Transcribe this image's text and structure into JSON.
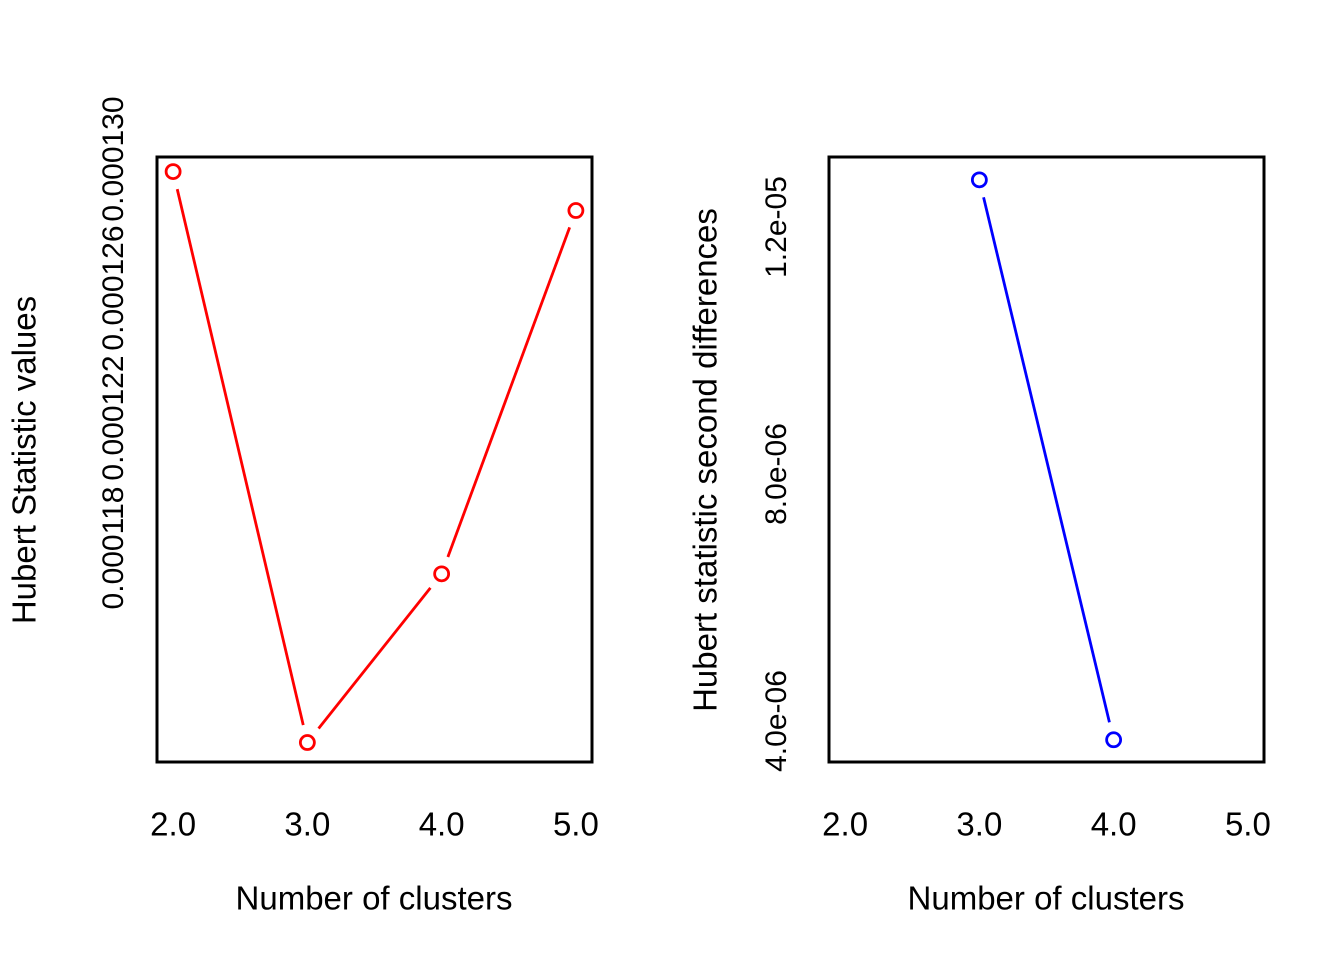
{
  "figure": {
    "background": "#FFFFFF",
    "text_color": "#000000",
    "frame_color": "#000000"
  },
  "chart_data": [
    {
      "type": "line",
      "xlabel": "Number of clusters",
      "ylabel": "Hubert Statistic values",
      "series": [
        {
          "color": "#FF0000",
          "marker": "open-circle",
          "x": [
            2,
            3,
            4,
            5
          ],
          "y": [
            0.0001296,
            0.000112,
            0.0001172,
            0.0001284
          ]
        }
      ],
      "xlim": [
        1.88,
        5.12
      ],
      "ylim": [
        0.0001114,
        0.00013005
      ],
      "xticks": {
        "values": [
          2,
          3,
          4,
          5
        ],
        "labels": [
          "2.0",
          "3.0",
          "4.0",
          "5.0"
        ]
      },
      "yticks": {
        "values": [
          0.000118,
          0.000122,
          0.000126,
          0.00013
        ],
        "labels": [
          "0.000118",
          "0.000122",
          "0.000126",
          "0.000130"
        ]
      },
      "grid": false,
      "legend": "none"
    },
    {
      "type": "line",
      "xlabel": "Number of clusters",
      "ylabel": "Hubert statistic second differences",
      "series": [
        {
          "color": "#0000FF",
          "marker": "open-circle",
          "x": [
            3,
            4
          ],
          "y": [
            1.276e-05,
            3.69e-06
          ]
        }
      ],
      "xlim": [
        1.88,
        5.12
      ],
      "ylim": [
        3.33e-06,
        1.313e-05
      ],
      "xticks": {
        "values": [
          2,
          3,
          4,
          5
        ],
        "labels": [
          "2.0",
          "3.0",
          "4.0",
          "5.0"
        ]
      },
      "yticks": {
        "values": [
          4e-06,
          8e-06,
          1.2e-05
        ],
        "labels": [
          "4.0e-06",
          "8.0e-06",
          "1.2e-05"
        ]
      },
      "grid": false,
      "legend": "none"
    }
  ]
}
